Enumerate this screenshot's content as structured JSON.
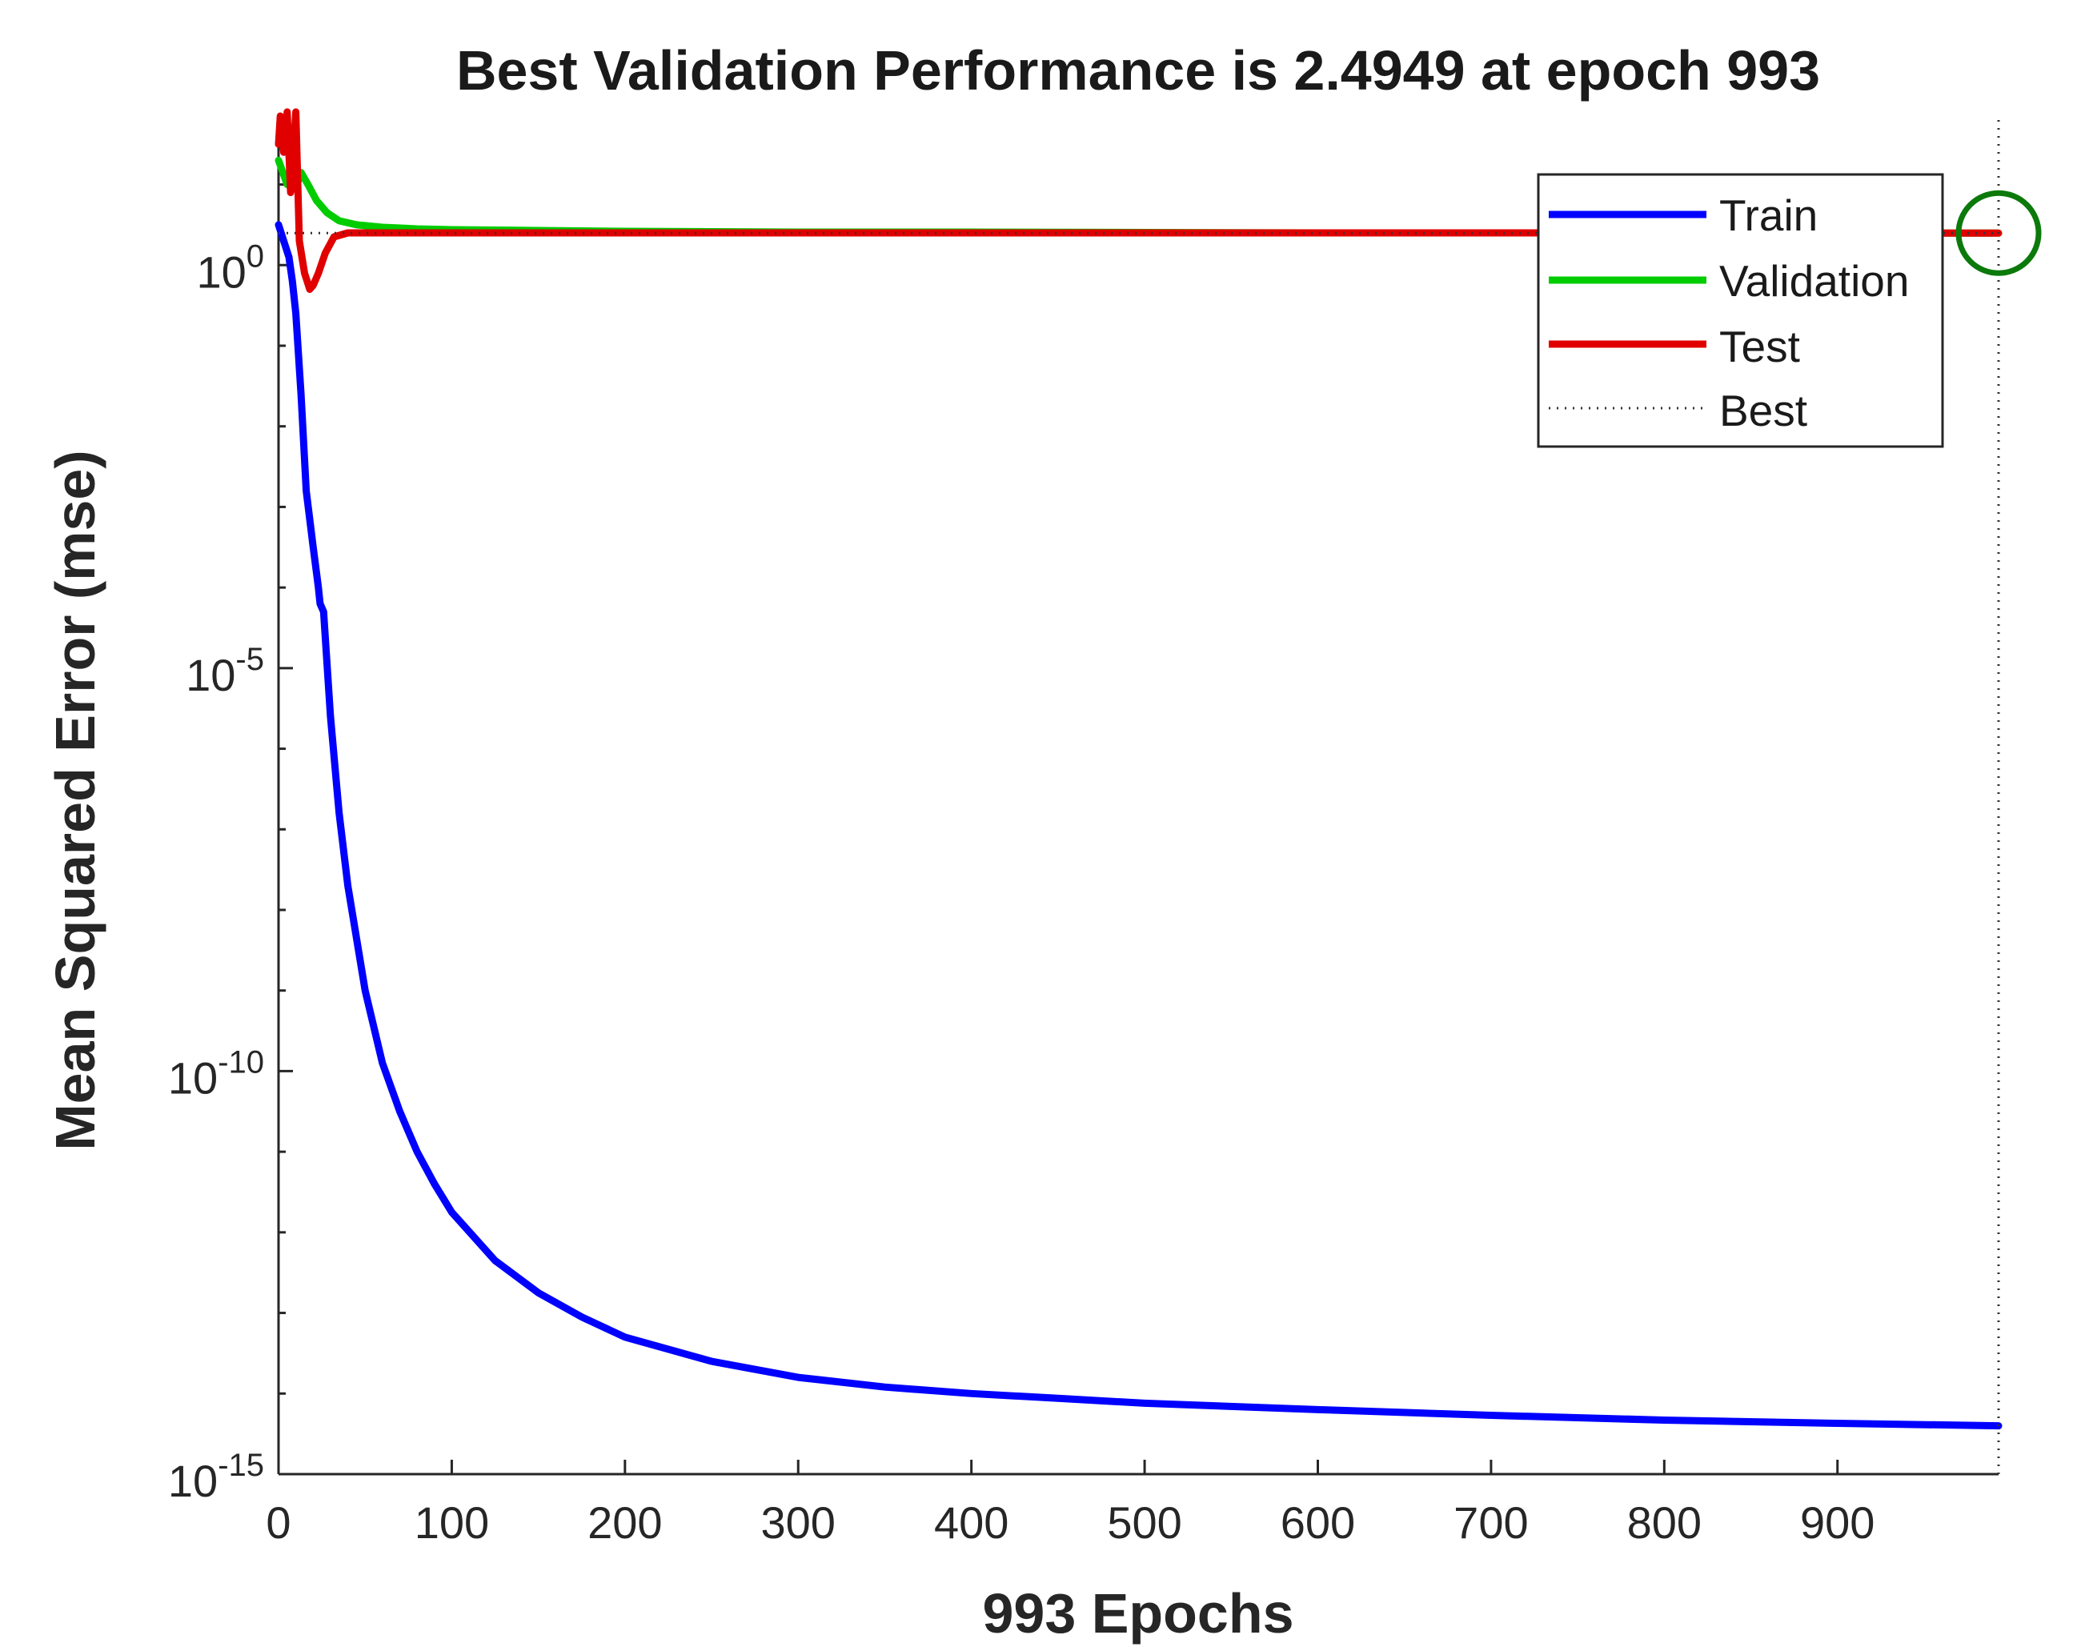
{
  "chart_data": {
    "type": "line",
    "title": "Best Validation Performance is 2.4949 at epoch 993",
    "xlabel": "993 Epochs",
    "ylabel": "Mean Squared Error  (mse)",
    "yscale": "log",
    "xlim": [
      0,
      993
    ],
    "ylim_exponent": [
      -15,
      1.8
    ],
    "x_ticks": [
      0,
      100,
      200,
      300,
      400,
      500,
      600,
      700,
      800,
      900
    ],
    "y_ticks": [
      {
        "exponent": 0,
        "base": "10",
        "sup": "0"
      },
      {
        "exponent": -5,
        "base": "10",
        "sup": "-5"
      },
      {
        "exponent": -10,
        "base": "10",
        "sup": "-10"
      },
      {
        "exponent": -15,
        "base": "10",
        "sup": "-15"
      }
    ],
    "best": {
      "epoch": 993,
      "value": 2.4949
    },
    "legend": {
      "position": "top-right",
      "entries": [
        "Train",
        "Validation",
        "Test",
        "Best"
      ]
    },
    "series": [
      {
        "name": "Train",
        "color": "#0000ff",
        "x": [
          0,
          3,
          6,
          8,
          10,
          13,
          16,
          20,
          23,
          24,
          26,
          30,
          35,
          40,
          50,
          60,
          70,
          80,
          90,
          100,
          125,
          150,
          175,
          200,
          250,
          300,
          350,
          400,
          450,
          500,
          600,
          700,
          800,
          900,
          993
        ],
        "y_log10": [
          0.5,
          0.3,
          0.1,
          -0.2,
          -0.6,
          -1.6,
          -2.8,
          -3.5,
          -4.0,
          -4.2,
          -4.3,
          -5.6,
          -6.8,
          -7.7,
          -9.0,
          -9.9,
          -10.5,
          -11.0,
          -11.4,
          -11.75,
          -12.35,
          -12.75,
          -13.05,
          -13.3,
          -13.6,
          -13.8,
          -13.92,
          -14.0,
          -14.06,
          -14.12,
          -14.2,
          -14.27,
          -14.33,
          -14.37,
          -14.4
        ]
      },
      {
        "name": "Validation",
        "color": "#00cc00",
        "x": [
          0,
          5,
          10,
          13,
          17,
          22,
          28,
          35,
          45,
          60,
          80,
          100,
          150,
          200,
          300,
          400,
          500,
          600,
          700,
          800,
          900,
          993
        ],
        "y_log10": [
          1.3,
          1.0,
          0.95,
          1.15,
          1.0,
          0.8,
          0.65,
          0.55,
          0.5,
          0.47,
          0.45,
          0.44,
          0.43,
          0.42,
          0.41,
          0.41,
          0.405,
          0.4,
          0.4,
          0.4,
          0.397,
          0.397
        ]
      },
      {
        "name": "Test",
        "color": "#e00000",
        "x": [
          0,
          1,
          3,
          5,
          7,
          10,
          12,
          15,
          18,
          20,
          23,
          27,
          32,
          40,
          60,
          100,
          200,
          400,
          600,
          800,
          993
        ],
        "y_log10": [
          1.5,
          1.85,
          1.4,
          1.9,
          0.9,
          1.9,
          0.3,
          -0.1,
          -0.3,
          -0.25,
          -0.1,
          0.15,
          0.35,
          0.4,
          0.4,
          0.4,
          0.4,
          0.4,
          0.4,
          0.4,
          0.397
        ]
      }
    ]
  }
}
